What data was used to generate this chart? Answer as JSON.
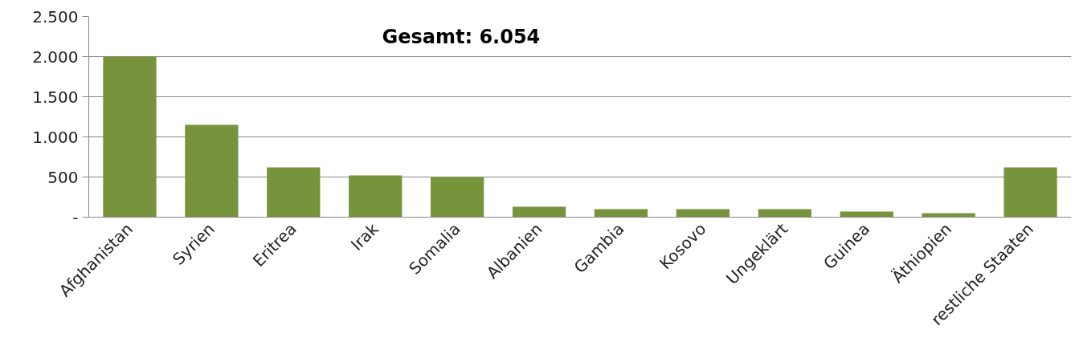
{
  "chart_data": {
    "type": "bar",
    "categories": [
      "Afghanistan",
      "Syrien",
      "Eritrea",
      "Irak",
      "Somalia",
      "Albanien",
      "Gambia",
      "Kosovo",
      "Ungeklärt",
      "Guinea",
      "Äthiopien",
      "restliche Staaten"
    ],
    "values": [
      2000,
      1150,
      620,
      520,
      500,
      130,
      100,
      100,
      100,
      70,
      50,
      620
    ],
    "color": "#77933c",
    "ylim": [
      0,
      2500
    ],
    "yticks": [
      {
        "value": 0,
        "label": "-"
      },
      {
        "value": 500,
        "label": "500"
      },
      {
        "value": 1000,
        "label": "1.000"
      },
      {
        "value": 1500,
        "label": "1.500"
      },
      {
        "value": 2000,
        "label": "2.000"
      },
      {
        "value": 2500,
        "label": "2.500"
      }
    ],
    "grid": "y",
    "annotations": [
      "Gesamt:  6.054"
    ]
  }
}
